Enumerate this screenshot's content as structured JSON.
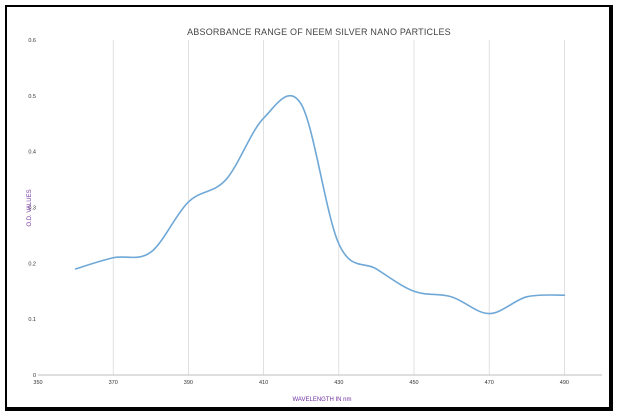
{
  "chart_data": {
    "type": "line",
    "title": "ABSORBANCE RANGE OF NEEM SILVER NANO PARTICLES",
    "xlabel": "WAVELENGTH IN nm",
    "ylabel": "O.D. VALUES",
    "xlim": [
      350,
      500
    ],
    "ylim": [
      0,
      0.6
    ],
    "x_ticks": [
      "350",
      "370",
      "390",
      "410",
      "430",
      "450",
      "470",
      "490"
    ],
    "x_tick_values": [
      350,
      370,
      390,
      410,
      430,
      450,
      470,
      490
    ],
    "y_ticks": [
      "0",
      "0.1",
      "0.2",
      "0.3",
      "0.4",
      "0.5",
      "0.6"
    ],
    "y_tick_values": [
      0,
      0.1,
      0.2,
      0.3,
      0.4,
      0.5,
      0.6
    ],
    "grid": "vertical",
    "legend": "none",
    "series": [
      {
        "color": "#6fa8d6",
        "x": [
          360,
          370,
          380,
          390,
          400,
          410,
          420,
          430,
          440,
          450,
          460,
          470,
          480,
          490
        ],
        "y": [
          0.19,
          0.21,
          0.22,
          0.31,
          0.35,
          0.46,
          0.485,
          0.235,
          0.19,
          0.15,
          0.14,
          0.11,
          0.14,
          0.143
        ]
      }
    ]
  }
}
